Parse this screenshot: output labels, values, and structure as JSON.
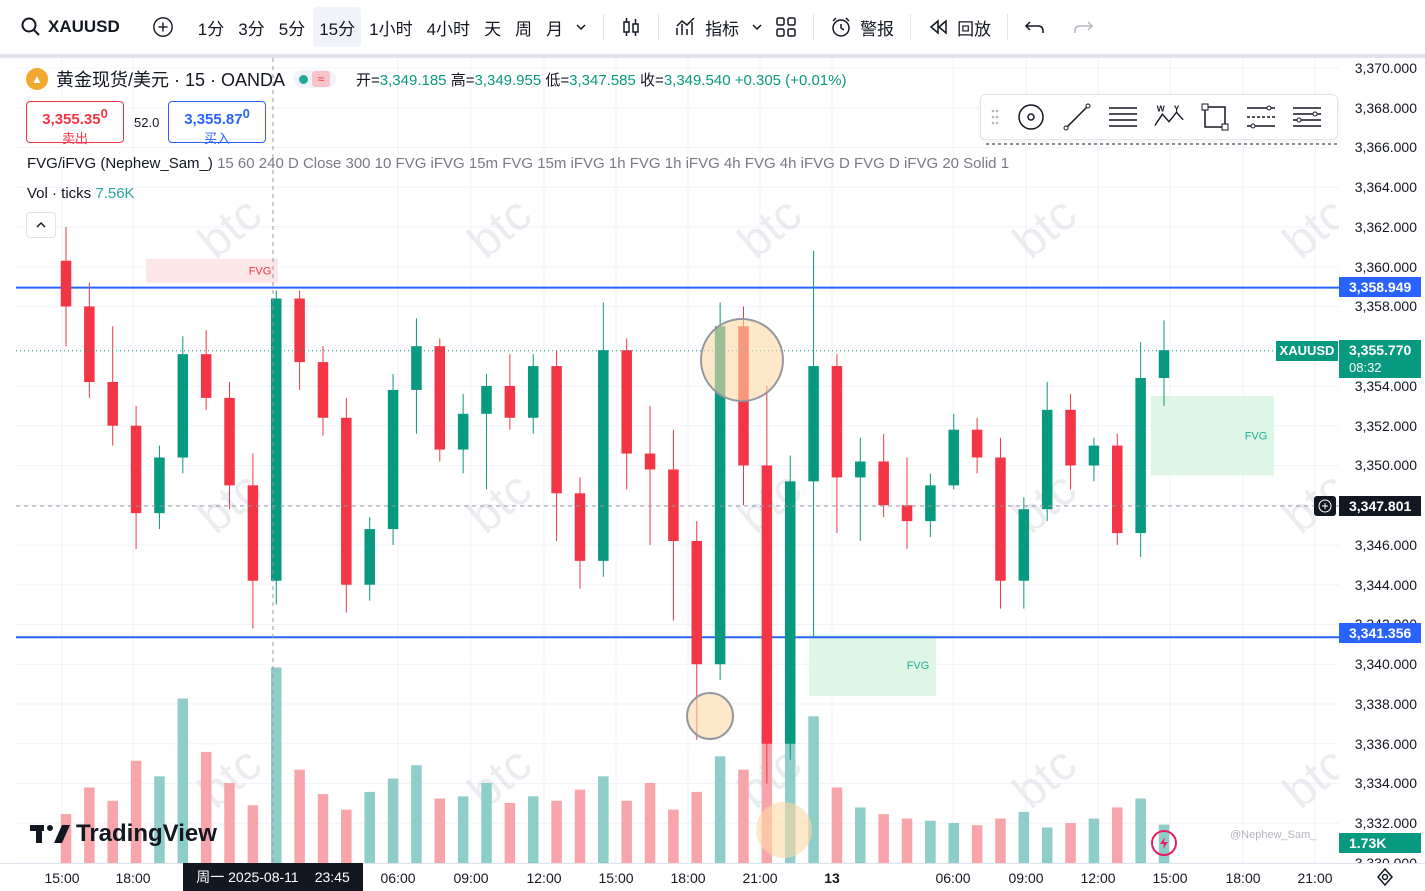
{
  "toolbar": {
    "symbol": "XAUUSD",
    "intervals": [
      "1分",
      "3分",
      "5分",
      "15分",
      "1小时",
      "4小时",
      "天",
      "周",
      "月"
    ],
    "active_interval": "15分",
    "indicators_label": "指标",
    "alert_label": "警报",
    "replay_label": "回放"
  },
  "legend": {
    "title": "黄金现货/美元 · 15 · OANDA",
    "open_label": "开=",
    "open": "3,349.185",
    "high_label": "高=",
    "high": "3,349.955",
    "low_label": "低=",
    "low": "3,347.585",
    "close_label": "收=",
    "close": "3,349.540",
    "change": "+0.305 (+0.01%)",
    "sell_price": "3,355.35",
    "sell_sup": "0",
    "sell_label": "卖出",
    "spread": "52.0",
    "buy_price": "3,355.87",
    "buy_sup": "0",
    "buy_label": "买入",
    "indicator_name": "FVG/iFVG (Nephew_Sam_)",
    "indicator_params": "15 60 240 D Close 300 10 FVG iFVG 15m FVG 15m iFVG 1h FVG 1h iFVG 4h FVG 4h iFVG D FVG D iFVG 20 Solid 1",
    "vol_label": "Vol · ticks",
    "vol_value": "7.56K"
  },
  "price_axis": {
    "labels": [
      "3,370.000",
      "3,368.000",
      "3,366.000",
      "3,364.000",
      "3,362.000",
      "3,360.000",
      "3,358.000",
      "3,356.000",
      "3,354.000",
      "3,352.000",
      "3,350.000",
      "3,348.000",
      "3,346.000",
      "3,344.000",
      "3,342.000",
      "3,340.000",
      "3,338.000",
      "3,336.000",
      "3,334.000",
      "3,332.000",
      "3,330.000"
    ],
    "line_upper": "3,358.949",
    "line_lower": "3,341.356",
    "current_price": "3,355.770",
    "countdown": "08:32",
    "cursor_price": "3,347.801",
    "vol_tag": "1.73K",
    "symbol_tag": "XAUUSD"
  },
  "time_axis": {
    "labels": [
      "15:00",
      "18:00",
      "06:00",
      "09:00",
      "12:00",
      "15:00",
      "18:00",
      "21:00",
      "13",
      "06:00",
      "09:00",
      "12:00",
      "15:00",
      "18:00",
      "21:00"
    ],
    "highlight_date": "周一 2025-08-11",
    "highlight_time": "23:45"
  },
  "chart_data": {
    "type": "candlestick",
    "series": [
      {
        "name": "XAUUSD",
        "ohlc": [
          [
            3360.3,
            3362.0,
            3356.0,
            3358.0
          ],
          [
            3358.0,
            3359.2,
            3353.4,
            3354.2
          ],
          [
            3354.2,
            3357.0,
            3351.0,
            3352.0
          ],
          [
            3352.0,
            3353.0,
            3345.8,
            3347.6
          ],
          [
            3347.6,
            3351.0,
            3346.8,
            3350.4
          ],
          [
            3350.4,
            3356.5,
            3349.6,
            3355.6
          ],
          [
            3355.6,
            3356.8,
            3352.8,
            3353.4
          ],
          [
            3353.4,
            3354.2,
            3347.8,
            3349.0
          ],
          [
            3349.0,
            3350.6,
            3341.8,
            3344.2
          ],
          [
            3344.2,
            3358.8,
            3343.0,
            3358.4
          ],
          [
            3358.4,
            3358.8,
            3353.8,
            3355.2
          ],
          [
            3355.2,
            3356.0,
            3351.5,
            3352.4
          ],
          [
            3352.4,
            3353.4,
            3342.6,
            3344.0
          ],
          [
            3344.0,
            3347.4,
            3343.2,
            3346.8
          ],
          [
            3346.8,
            3354.6,
            3346.0,
            3353.8
          ],
          [
            3353.8,
            3357.4,
            3351.6,
            3356.0
          ],
          [
            3356.0,
            3356.4,
            3350.2,
            3350.8
          ],
          [
            3350.8,
            3353.6,
            3349.6,
            3352.6
          ],
          [
            3352.6,
            3354.6,
            3348.8,
            3354.0
          ],
          [
            3354.0,
            3355.6,
            3351.8,
            3352.4
          ],
          [
            3352.4,
            3355.6,
            3351.6,
            3355.0
          ],
          [
            3355.0,
            3355.8,
            3346.2,
            3348.6
          ],
          [
            3348.6,
            3349.4,
            3343.8,
            3345.2
          ],
          [
            3345.2,
            3358.2,
            3344.4,
            3355.8
          ],
          [
            3355.8,
            3356.4,
            3348.8,
            3350.6
          ],
          [
            3350.6,
            3353.0,
            3346.0,
            3349.8
          ],
          [
            3349.8,
            3351.8,
            3342.2,
            3346.2
          ],
          [
            3346.2,
            3347.2,
            3336.2,
            3340.0
          ],
          [
            3340.0,
            3358.2,
            3339.2,
            3357.0
          ],
          [
            3357.0,
            3358.0,
            3348.0,
            3350.0
          ],
          [
            3350.0,
            3354.0,
            3334.0,
            3336.0
          ],
          [
            3336.0,
            3350.5,
            3335.2,
            3349.2
          ],
          [
            3349.2,
            3360.8,
            3341.4,
            3355.0
          ],
          [
            3355.0,
            3355.6,
            3346.6,
            3349.4
          ],
          [
            3349.4,
            3351.4,
            3346.2,
            3350.2
          ],
          [
            3350.2,
            3351.6,
            3347.4,
            3348.0
          ],
          [
            3348.0,
            3350.4,
            3345.8,
            3347.2
          ],
          [
            3347.2,
            3349.6,
            3346.4,
            3349.0
          ],
          [
            3349.0,
            3352.6,
            3348.8,
            3351.8
          ],
          [
            3351.8,
            3352.4,
            3349.6,
            3350.4
          ],
          [
            3350.4,
            3351.4,
            3342.8,
            3344.2
          ],
          [
            3344.2,
            3348.4,
            3342.8,
            3347.8
          ],
          [
            3347.8,
            3354.2,
            3347.2,
            3352.8
          ],
          [
            3352.8,
            3353.6,
            3348.8,
            3350.0
          ],
          [
            3350.0,
            3351.4,
            3349.2,
            3351.0
          ],
          [
            3351.0,
            3351.6,
            3346.0,
            3346.6
          ],
          [
            3346.6,
            3356.2,
            3345.4,
            3354.4
          ],
          [
            3354.4,
            3357.3,
            3353.0,
            3355.8
          ]
        ]
      },
      {
        "name": "Vol · ticks",
        "values": [
          2.2,
          3.4,
          2.8,
          4.6,
          3.9,
          7.4,
          5.0,
          3.6,
          2.6,
          8.8,
          4.2,
          3.1,
          2.4,
          3.2,
          3.8,
          4.4,
          2.9,
          3.0,
          3.6,
          2.7,
          3.0,
          2.8,
          3.3,
          3.9,
          2.8,
          3.6,
          2.4,
          3.2,
          4.8,
          4.2,
          5.8,
          6.1,
          6.6,
          3.4,
          2.5,
          2.2,
          2.0,
          1.9,
          1.8,
          1.7,
          2.0,
          2.3,
          1.6,
          1.8,
          2.0,
          2.5,
          2.9,
          1.73
        ]
      }
    ],
    "fvg_zones": [
      {
        "label": "FVG",
        "type": "bearish",
        "top": 3360.4,
        "bottom": 3359.2
      },
      {
        "label": "FVG",
        "type": "bullish",
        "top": 3341.5,
        "bottom": 3338.4
      },
      {
        "label": "FVG",
        "type": "bullish",
        "top": 3353.5,
        "bottom": 3349.5
      }
    ],
    "horizontal_lines": [
      3358.949,
      3341.356
    ],
    "current_price": 3355.77,
    "ylim": [
      3330.0,
      3370.5
    ],
    "grid": true,
    "watermark": "btc",
    "credit": "@Nephew_Sam_",
    "colors": {
      "up": "#089981",
      "down": "#f23645",
      "vol_up": "#8ecdc8",
      "vol_down": "#f7a5aa",
      "hline": "#2962ff",
      "fvg_bull": "#d8f5e2",
      "fvg_bear": "#fde2e4"
    }
  },
  "branding": {
    "logo_text": "TradingView"
  }
}
